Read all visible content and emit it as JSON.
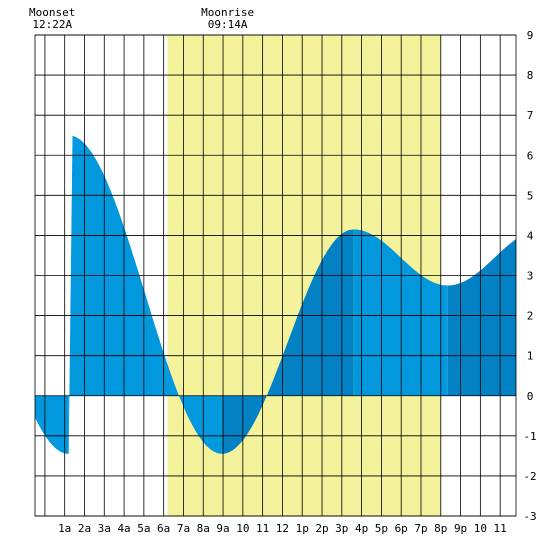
{
  "chart_data": {
    "type": "area",
    "title": "",
    "xlabel": "",
    "ylabel": "",
    "ylim": [
      -3,
      9
    ],
    "xlim": [
      -0.5,
      23.8
    ],
    "grid": true,
    "y_ticks": [
      "-3",
      "-2",
      "-1",
      "0",
      "1",
      "2",
      "3",
      "4",
      "5",
      "6",
      "7",
      "8",
      "9"
    ],
    "x_tick_labels": [
      "1a",
      "2a",
      "3a",
      "4a",
      "5a",
      "6a",
      "7a",
      "8a",
      "9a",
      "10",
      "11",
      "12",
      "1p",
      "2p",
      "3p",
      "4p",
      "5p",
      "6p",
      "7p",
      "8p",
      "9p",
      "10",
      "11"
    ],
    "daylight": {
      "start_hour": 6.2,
      "end_hour": 20.0,
      "color": "#f4f29a"
    },
    "moon_events": [
      {
        "label": "Moonset",
        "time": "12:22A",
        "hour": 0.37
      },
      {
        "label": "Moonrise",
        "time": "09:14A",
        "hour": 9.23
      }
    ],
    "tide_extremes": [
      {
        "time_hour": 1.2,
        "height": 6.5,
        "type": "high"
      },
      {
        "time_hour": 8.95,
        "height": -1.45,
        "type": "low"
      },
      {
        "time_hour": 15.6,
        "height": 4.15,
        "type": "high"
      },
      {
        "time_hour": 20.35,
        "height": 2.75,
        "type": "low"
      }
    ],
    "colors": {
      "rising_fill": "#0282c4",
      "falling_fill": "#0198de",
      "grid": "#000000",
      "plot_background": "#ffffff"
    }
  }
}
